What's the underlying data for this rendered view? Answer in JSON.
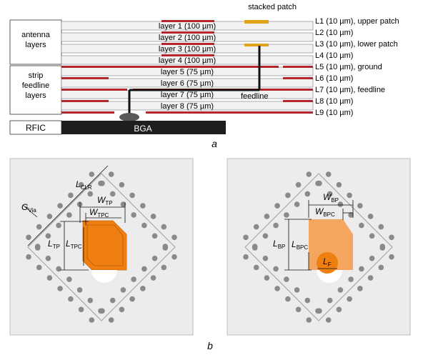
{
  "figure_a": {
    "panel_label": "a",
    "stacked_patch_label": "stacked patch",
    "group_labels": {
      "antenna": [
        "antenna",
        "layers"
      ],
      "strip": [
        "strip",
        "feedline",
        "layers"
      ]
    },
    "rfic_label": "RFIC",
    "bga_label": "BGA",
    "feedline_label": "feedline",
    "dielectric_layers": [
      "layer 1 (100 µm)",
      "layer 2 (100 µm)",
      "layer 3 (100 µm)",
      "layer 4 (100 µm)",
      "layer 5 (75 µm)",
      "layer 6 (75 µm)",
      "layer 7 (75 µm)",
      "layer 8 (75 µm)"
    ],
    "metal_layers": [
      "L1 (10 µm), upper patch",
      "L2 (10 µm)",
      "L3 (10 µm), lower patch",
      "L4 (10 µm)",
      "L5 (10 µm), ground",
      "L6 (10 µm)",
      "L7 (10 µm), feedline",
      "L8 (10 µm)",
      "L9 (10 µm)"
    ],
    "colors": {
      "copper": "#b3262b",
      "patch": "#e3a21a",
      "layer_fill": "#f2f2f2",
      "layer_stroke": "#8c8c8c",
      "rfic": "#1e1e1e",
      "bga": "#595959"
    }
  },
  "figure_b": {
    "panel_label": "b",
    "left": {
      "labels": {
        "g_via": [
          "G",
          "Via"
        ],
        "l_clr": [
          "L",
          "CLR"
        ],
        "w_tp": [
          "W",
          "TP"
        ],
        "w_tpc": [
          "W",
          "TPC"
        ],
        "l_tp": [
          "L",
          "TP"
        ],
        "l_tpc": [
          "L",
          "TPC"
        ]
      }
    },
    "right": {
      "labels": {
        "w_bp": [
          "W",
          "BP"
        ],
        "w_bpc": [
          "W",
          "BPC"
        ],
        "l_bp": [
          "L",
          "BP"
        ],
        "l_bpc": [
          "L",
          "BPC"
        ],
        "l_f": [
          "L",
          "F"
        ]
      }
    },
    "colors": {
      "panel_bg": "#ececec",
      "panel_border": "#bdbdbd",
      "diamond": "#a9a9a9",
      "via": "#8a8a8a",
      "upper_patch": "#f07f12",
      "lower_patch": "#f4a65e",
      "feed_disc": "#f07f12"
    }
  }
}
